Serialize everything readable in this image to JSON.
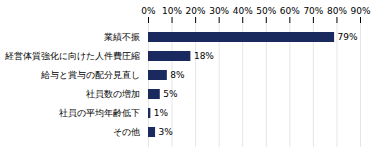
{
  "chart_data": {
    "type": "bar",
    "orientation": "horizontal",
    "categories": [
      "その他",
      "社員の平均年齢低下",
      "社員数の増加",
      "給与と賞与の配分見直し",
      "経営体質強化に向けた人件費圧縮",
      "業績不振"
    ],
    "values": [
      3,
      1,
      5,
      8,
      18,
      79
    ],
    "value_labels": [
      "3%",
      "1%",
      "5%",
      "8%",
      "18%",
      "79%"
    ],
    "data_labels": true,
    "color": "#1a2a5e",
    "xlim": [
      0,
      90
    ],
    "xticks": [
      {
        "value": 0,
        "label": "0%"
      },
      {
        "value": 10,
        "label": "10%"
      },
      {
        "value": 20,
        "label": "20%"
      },
      {
        "value": 30,
        "label": "30%"
      },
      {
        "value": 40,
        "label": "40%"
      },
      {
        "value": 50,
        "label": "50%"
      },
      {
        "value": 60,
        "label": "60%"
      },
      {
        "value": 70,
        "label": "70%"
      },
      {
        "value": 80,
        "label": "80%"
      },
      {
        "value": 90,
        "label": "90%"
      }
    ],
    "grid": true
  }
}
